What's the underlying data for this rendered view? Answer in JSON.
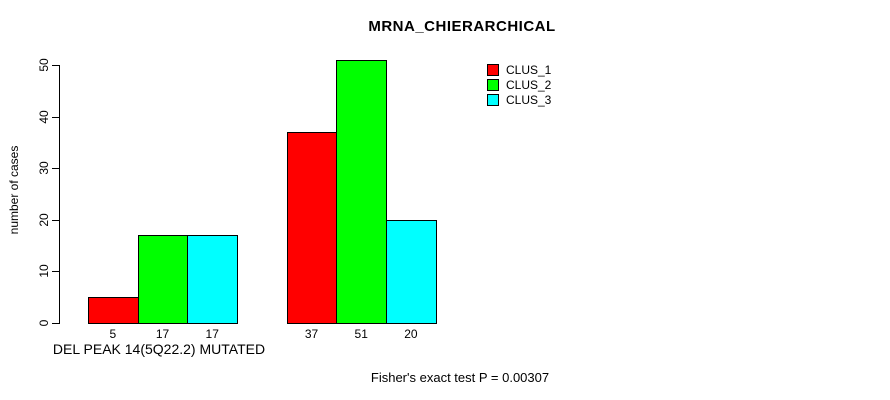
{
  "title": "MRNA_CHIERARCHICAL",
  "annotation": "Fisher's exact test P = 0.00307",
  "chart_data": {
    "type": "bar",
    "title": "MRNA_CHIERARCHICAL",
    "xlabel": "",
    "ylabel": "number of cases",
    "ylim": [
      0,
      51
    ],
    "yticks": [
      0,
      10,
      20,
      30,
      40,
      50
    ],
    "grid": false,
    "legend_position": "top-right",
    "series": [
      {
        "name": "CLUS_1",
        "color": "#ff0000"
      },
      {
        "name": "CLUS_2",
        "color": "#00ff00"
      },
      {
        "name": "CLUS_3",
        "color": "#00ffff"
      }
    ],
    "groups": [
      {
        "label": "DEL PEAK 14(5Q22.2) MUTATED",
        "values": [
          5,
          17,
          17
        ]
      },
      {
        "label": "",
        "values": [
          37,
          51,
          20
        ]
      }
    ],
    "bar_value_labels": [
      [
        5,
        17,
        17
      ],
      [
        37,
        51,
        20
      ]
    ]
  }
}
